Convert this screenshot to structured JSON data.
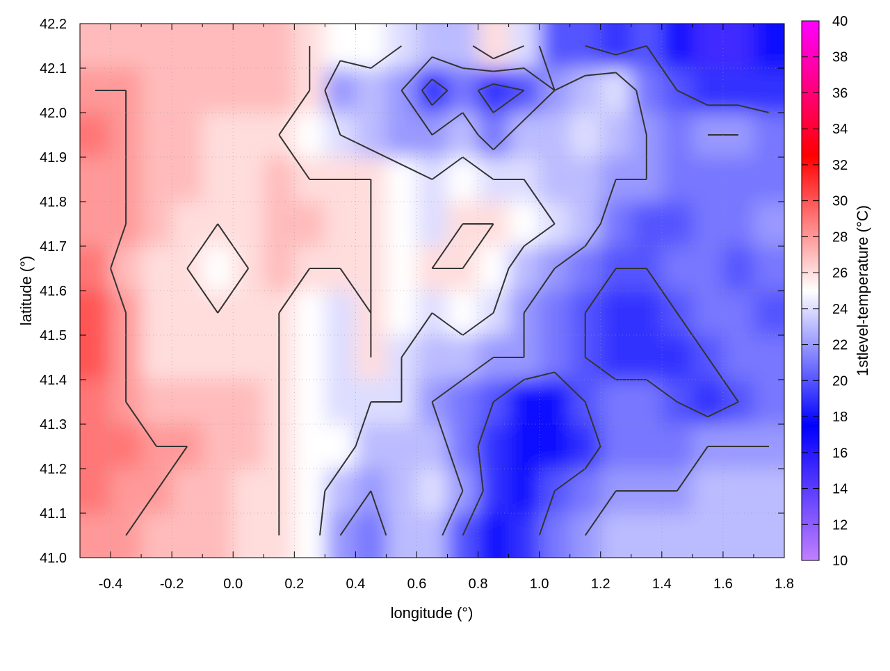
{
  "chart_data": {
    "type": "heatmap",
    "xlabel": "longitude (°)",
    "ylabel": "latitude (°)",
    "colorbar_label": "1stlevel-temperature (°C)",
    "xlim": [
      -0.5,
      1.8
    ],
    "ylim": [
      41.0,
      42.2
    ],
    "clim": [
      10,
      40
    ],
    "grid": true,
    "x_ticks": [
      "-0.4",
      "-0.2",
      "0.0",
      "0.2",
      "0.4",
      "0.6",
      "0.8",
      "1.0",
      "1.2",
      "1.4",
      "1.6",
      "1.8"
    ],
    "y_ticks": [
      "41.0",
      "41.1",
      "41.2",
      "41.3",
      "41.4",
      "41.5",
      "41.6",
      "41.7",
      "41.8",
      "41.9",
      "42.0",
      "42.1",
      "42.2"
    ],
    "colorbar_ticks": [
      "10",
      "12",
      "14",
      "16",
      "18",
      "20",
      "22",
      "24",
      "26",
      "28",
      "30",
      "32",
      "34",
      "36",
      "38",
      "40"
    ],
    "colormap": [
      {
        "value": 10,
        "color": "#c080ff"
      },
      {
        "value": 17.5,
        "color": "#0000ff"
      },
      {
        "value": 25,
        "color": "#ffffff"
      },
      {
        "value": 32.5,
        "color": "#ff0000"
      },
      {
        "value": 40,
        "color": "#ff00ff"
      }
    ],
    "contour_levels": [
      20,
      22,
      24,
      26,
      28
    ],
    "contour_color": "#333333",
    "grid_lon": [
      -0.45,
      -0.35,
      -0.25,
      -0.15,
      -0.05,
      0.05,
      0.15,
      0.25,
      0.35,
      0.45,
      0.55,
      0.65,
      0.75,
      0.85,
      0.95,
      1.05,
      1.15,
      1.25,
      1.35,
      1.45,
      1.55,
      1.65,
      1.75
    ],
    "grid_lat": [
      42.15,
      42.05,
      41.95,
      41.85,
      41.75,
      41.65,
      41.55,
      41.45,
      41.35,
      41.25,
      41.15,
      41.05
    ],
    "values": [
      [
        27,
        27,
        27,
        27,
        27,
        27,
        27,
        26,
        25,
        25,
        24,
        23,
        23,
        26,
        24,
        20,
        20,
        19,
        20,
        18,
        15,
        15,
        18
      ],
      [
        28,
        28,
        27,
        27,
        27,
        27,
        27,
        26,
        22,
        23,
        22,
        19,
        21,
        19,
        20,
        22,
        23,
        24,
        21,
        20,
        19,
        19,
        19
      ],
      [
        29,
        28,
        27,
        27,
        26,
        26,
        26,
        25,
        24,
        23,
        22,
        22,
        23,
        21,
        23,
        23,
        24,
        23,
        22,
        21,
        22,
        22,
        21
      ],
      [
        28,
        28,
        27,
        27,
        26,
        26,
        27,
        26,
        26,
        26,
        25,
        24,
        25,
        24,
        24,
        23,
        23,
        22,
        22,
        21,
        21,
        21,
        21
      ],
      [
        28,
        28,
        27,
        26,
        26,
        26,
        27,
        27,
        26,
        26,
        25,
        24,
        26,
        26,
        25,
        24,
        23,
        21,
        20,
        20,
        21,
        21,
        22
      ],
      [
        29,
        27,
        26,
        26,
        25,
        26,
        27,
        26,
        26,
        26,
        25,
        26,
        26,
        25,
        23,
        22,
        21,
        20,
        20,
        21,
        21,
        20,
        21
      ],
      [
        30,
        28,
        26,
        26,
        26,
        26,
        26,
        25,
        24,
        26,
        25,
        24,
        25,
        24,
        22,
        21,
        20,
        19,
        19,
        20,
        21,
        21,
        20
      ],
      [
        30,
        28,
        26,
        26,
        26,
        26,
        26,
        25,
        24,
        26,
        24,
        23,
        23,
        22,
        22,
        21,
        20,
        19,
        19,
        19,
        20,
        21,
        21
      ],
      [
        29,
        28,
        27,
        27,
        27,
        27,
        26,
        25,
        24,
        24,
        24,
        22,
        21,
        20,
        18,
        18,
        20,
        21,
        21,
        20,
        19,
        20,
        21
      ],
      [
        29,
        29,
        28,
        28,
        27,
        27,
        26,
        25,
        25,
        23,
        23,
        23,
        21,
        19,
        18,
        18,
        19,
        21,
        21,
        21,
        22,
        22,
        22
      ],
      [
        29,
        28,
        28,
        27,
        27,
        26,
        26,
        25,
        23,
        22,
        23,
        24,
        22,
        19,
        18,
        20,
        21,
        22,
        22,
        22,
        23,
        23,
        23
      ],
      [
        28,
        28,
        27,
        27,
        27,
        26,
        26,
        25,
        22,
        21,
        23,
        23,
        20,
        18,
        19,
        21,
        22,
        23,
        23,
        23,
        23,
        23,
        23
      ]
    ]
  }
}
